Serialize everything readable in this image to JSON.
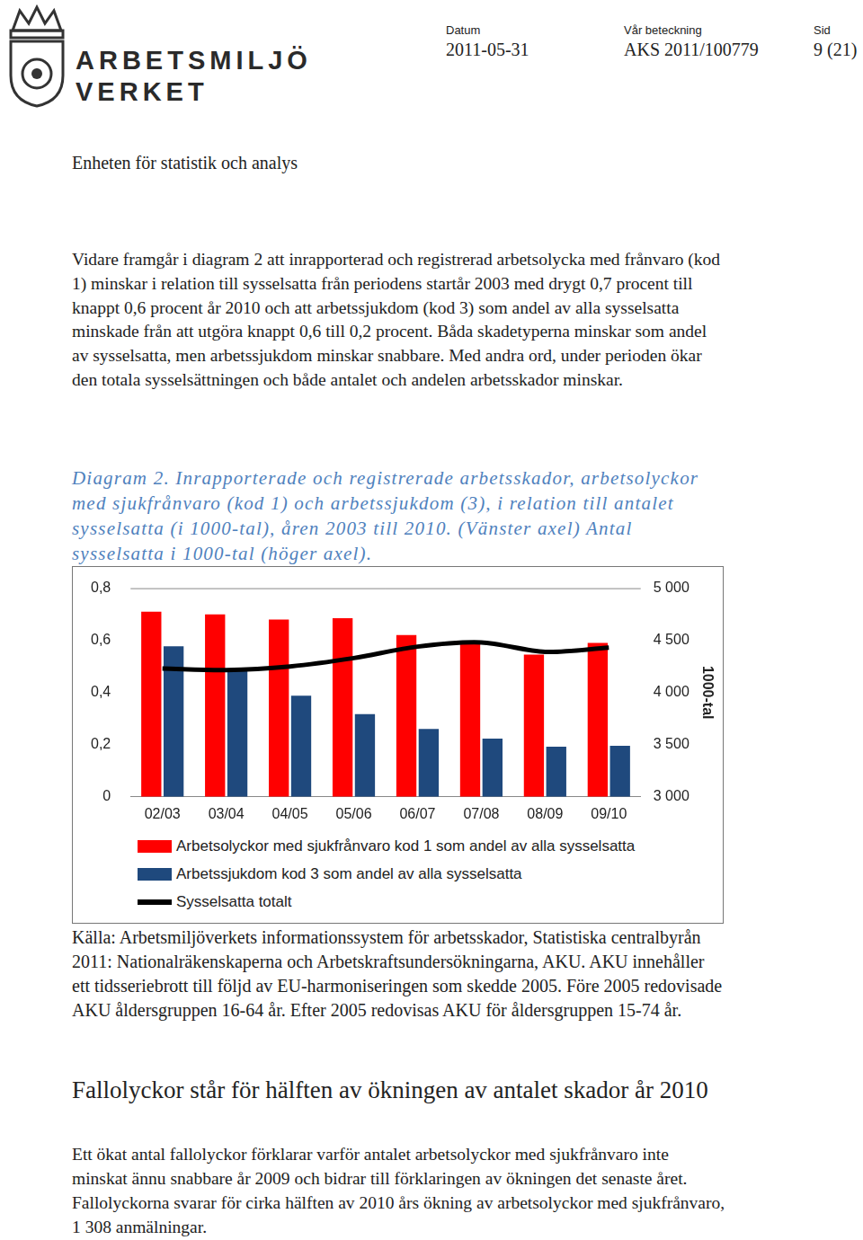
{
  "header": {
    "logo_lines": [
      "ARBETSMILJÖ",
      "VERKET"
    ],
    "fields": [
      {
        "label": "Datum",
        "value": "2011-05-31"
      },
      {
        "label": "Vår beteckning",
        "value": "AKS 2011/100779"
      },
      {
        "label": "Sid",
        "value": "9 (21)"
      }
    ],
    "unit": "Enheten för statistik och analys"
  },
  "paragraphs_before": [
    "Vidare framgår i diagram 2 att inrapporterad och registrerad arbetsolycka med frånvaro (kod 1) minskar i relation till sysselsatta från periodens startår 2003 med drygt 0,7 procent till knappt 0,6 procent år 2010 och att arbetssjukdom (kod 3) som andel av alla sysselsatta minskade från att utgöra knappt 0,6 till 0,2 procent. Båda skadetyperna minskar som andel av sysselsatta, men arbetssjukdom minskar snabbare. Med andra ord, under perioden ökar den totala sysselsättningen och både antalet och andelen arbetsskador minskar."
  ],
  "caption": "Diagram 2. Inrapporterade och registrerade arbetsskador, arbetsolyckor med sjukfrånvaro (kod 1) och arbetssjukdom (3), i relation till antalet sysselsatta (i 1000-tal), åren 2003 till 2010. (Vänster axel) Antal sysselsatta i 1000-tal (höger axel).",
  "chart_data": {
    "type": "bar",
    "categories": [
      "02/03",
      "03/04",
      "04/05",
      "05/06",
      "06/07",
      "07/08",
      "08/09",
      "09/10"
    ],
    "series": [
      {
        "name": "Arbetsolyckor med sjukfrånvaro kod 1 som andel av alla sysselsatta",
        "color": "#ff0000",
        "type": "bar",
        "values": [
          0.71,
          0.7,
          0.68,
          0.685,
          0.62,
          0.595,
          0.545,
          0.59
        ]
      },
      {
        "name": "Arbetssjukdom kod 3 som andel av alla sysselsatta",
        "color": "#1f497d",
        "type": "bar",
        "values": [
          0.577,
          0.483,
          0.388,
          0.317,
          0.26,
          0.223,
          0.192,
          0.196
        ]
      },
      {
        "name": "Sysselsatta totalt",
        "color": "#000000",
        "type": "line",
        "axis": "y2",
        "marker": "none",
        "values": [
          4230,
          4215,
          4250,
          4330,
          4440,
          4480,
          4390,
          4430
        ]
      }
    ],
    "ylim": [
      0,
      0.8
    ],
    "yticks": [
      {
        "value": 0,
        "label": "0"
      },
      {
        "value": 0.2,
        "label": "0,2"
      },
      {
        "value": 0.4,
        "label": "0,4"
      },
      {
        "value": 0.6,
        "label": "0,6"
      },
      {
        "value": 0.8,
        "label": "0,8"
      }
    ],
    "y2lim": [
      3000,
      5000
    ],
    "y2ticks": [
      {
        "value": 3000,
        "label": "3 000"
      },
      {
        "value": 3500,
        "label": "3 500"
      },
      {
        "value": 4000,
        "label": "4 000"
      },
      {
        "value": 4500,
        "label": "4 500"
      },
      {
        "value": 5000,
        "label": "5 000"
      }
    ],
    "y2_label": "1000-tal",
    "grid": false,
    "legend": "bottom"
  },
  "source": "Källa: Arbetsmiljöverkets informationssystem för arbetsskador, Statistiska centralbyrån 2011: Nationalräkenskaperna och Arbetskraftsundersökningarna, AKU. AKU innehåller ett tidsseriebrott till följd av EU-harmoniseringen som skedde 2005. Före 2005 redovisade AKU åldersgruppen 16-64 år. Efter 2005 redovisas AKU för åldersgruppen 15-74 år.",
  "heading": "Fallolyckor står för hälften av ökningen av antalet skador år 2010",
  "paragraphs_after": [
    "Ett ökat antal fallolyckor förklarar varför antalet arbetsolyckor med sjukfrånvaro inte minskat ännu snabbare år 2009 och bidrar till förklaringen av ökningen det senaste året. Fallolyckorna svarar för cirka hälften av 2010 års ökning av arbetsolyckor med sjukfrånvaro, 1 308 anmälningar."
  ]
}
